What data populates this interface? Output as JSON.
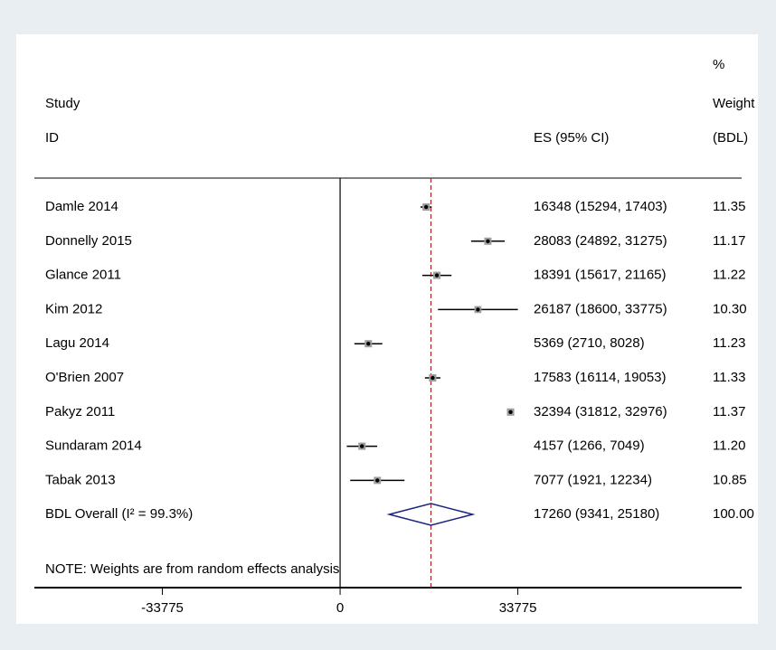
{
  "chart_data": {
    "type": "forest",
    "header": {
      "study": "Study",
      "id": "ID",
      "es": "ES (95% CI)",
      "weight_pct": "%",
      "weight": "Weight",
      "weight_unit": "(BDL)"
    },
    "categories": [
      "Damle 2014",
      "Donnelly 2015",
      "Glance 2011",
      "Kim 2012",
      "Lagu 2014",
      "O'Brien 2007",
      "Pakyz 2011",
      "Sundaram 2014",
      "Tabak 2013"
    ],
    "values": [
      16348,
      28083,
      18391,
      26187,
      5369,
      17583,
      32394,
      4157,
      7077
    ],
    "ci_lower": [
      15294,
      24892,
      15617,
      18600,
      2710,
      16114,
      31812,
      1266,
      1921
    ],
    "ci_upper": [
      17403,
      31275,
      21165,
      33775,
      8028,
      19053,
      32976,
      7049,
      12234
    ],
    "value_labels": [
      "16348 (15294, 17403)",
      "28083 (24892, 31275)",
      "18391 (15617, 21165)",
      "26187 (18600, 33775)",
      "5369 (2710, 8028)",
      "17583 (16114, 19053)",
      "32394 (31812, 32976)",
      "4157 (1266, 7049)",
      "7077 (1921, 12234)"
    ],
    "weights": [
      11.35,
      11.17,
      11.22,
      10.3,
      11.23,
      11.33,
      11.37,
      11.2,
      10.85
    ],
    "weight_labels": [
      "11.35",
      "11.17",
      "11.22",
      "10.30",
      "11.23",
      "11.33",
      "11.37",
      "11.20",
      "10.85"
    ],
    "overall": {
      "label": "BDL Overall  (I² = 99.3%)",
      "value": 17260,
      "ci_lower": 9341,
      "ci_upper": 25180,
      "value_label": "17260 (9341, 25180)",
      "weight": 100,
      "weight_label": "100.00"
    },
    "note": "NOTE: Weights are from random effects analysis",
    "xlim": [
      -58100,
      76300
    ],
    "xticks": [
      -33775,
      0,
      33775
    ],
    "line_color": "#000000",
    "overall_color": "#1a237e",
    "ref_line_color": "#b22222"
  }
}
